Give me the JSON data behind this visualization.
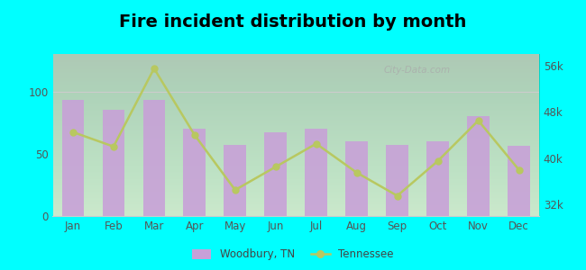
{
  "title": "Fire incident distribution by month",
  "months": [
    "Jan",
    "Feb",
    "Mar",
    "Apr",
    "May",
    "Jun",
    "Jul",
    "Aug",
    "Sep",
    "Oct",
    "Nov",
    "Dec"
  ],
  "woodbury_values": [
    93,
    85,
    93,
    70,
    57,
    67,
    70,
    60,
    57,
    60,
    80,
    56
  ],
  "tennessee_values": [
    44500,
    42000,
    55500,
    44000,
    34500,
    38500,
    42500,
    37500,
    33500,
    39500,
    46500,
    38000
  ],
  "bar_color": "#c8a0d8",
  "line_color": "#b8c860",
  "line_marker": "o",
  "left_ylim": [
    0,
    130
  ],
  "left_yticks": [
    0,
    50,
    100
  ],
  "right_ylim": [
    30000,
    58000
  ],
  "right_yticks": [
    32000,
    40000,
    48000,
    56000
  ],
  "right_yticklabels": [
    "32k",
    "40k",
    "48k",
    "56k"
  ],
  "outer_bg": "#00ffff",
  "plot_bg_top": "#d8eeda",
  "plot_bg_bottom": "#f0faf0",
  "title_fontsize": 14,
  "legend_woodbury": "Woodbury, TN",
  "legend_tennessee": "Tennessee"
}
